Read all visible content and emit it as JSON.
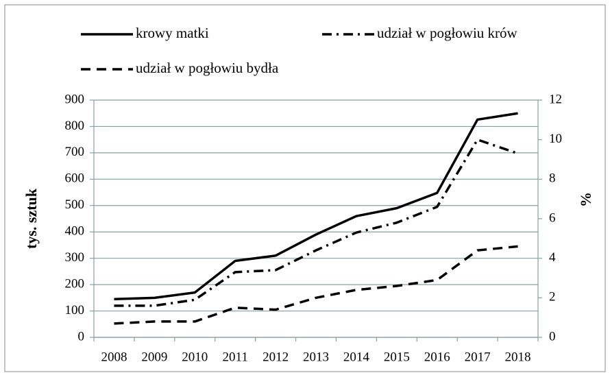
{
  "chart_data": {
    "type": "line",
    "categories": [
      "2008",
      "2009",
      "2010",
      "2011",
      "2012",
      "2013",
      "2014",
      "2015",
      "2016",
      "2017",
      "2018"
    ],
    "y_label": "tys. sztuk",
    "y2_label": "%",
    "ylim": [
      0,
      900
    ],
    "yticks": [
      0,
      100,
      200,
      300,
      400,
      500,
      600,
      700,
      800,
      900
    ],
    "y2lim": [
      0,
      12
    ],
    "y2ticks": [
      0,
      2,
      4,
      6,
      8,
      10,
      12
    ],
    "grid": true,
    "series": [
      {
        "name": "krowy matki",
        "color": "#000000",
        "dash": "solid",
        "values": [
          145,
          150,
          170,
          290,
          310,
          390,
          460,
          490,
          548,
          826,
          850
        ]
      },
      {
        "name": "udział w pogłowiu krów",
        "color": "#000000",
        "dash": "dashdot",
        "axis": "y2",
        "values": [
          1.6,
          1.6,
          1.9,
          3.3,
          3.4,
          4.4,
          5.3,
          5.8,
          6.6,
          10.0,
          9.3
        ]
      },
      {
        "name": "udział w pogłowiu bydła",
        "color": "#000000",
        "dash": "dash",
        "axis": "y2",
        "values": [
          0.7,
          0.8,
          0.8,
          1.5,
          1.4,
          2.0,
          2.4,
          2.6,
          2.9,
          4.4,
          4.6
        ]
      }
    ]
  }
}
